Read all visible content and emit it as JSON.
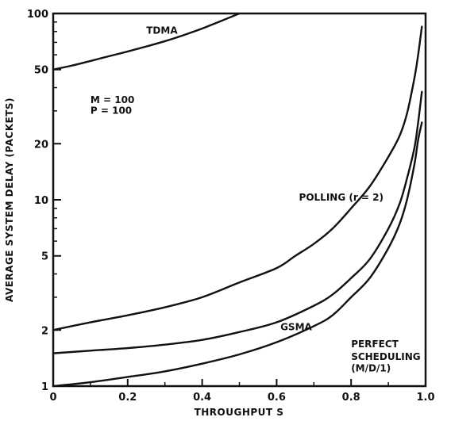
{
  "chart_data": {
    "type": "line",
    "xlabel": "THROUGHPUT S",
    "ylabel": "AVERAGE SYSTEM DELAY (PACKETS)",
    "xlim": [
      0,
      1.0
    ],
    "ylim": [
      1,
      100
    ],
    "yscale": "log",
    "grid": false,
    "x_ticks": [
      0,
      0.2,
      0.4,
      0.6,
      0.8,
      1.0
    ],
    "x_tick_labels": [
      "0",
      "0.2",
      "0.4",
      "0.6",
      "0.8",
      "1.0"
    ],
    "y_major_ticks": [
      1,
      2,
      5,
      10,
      20,
      50,
      100
    ],
    "y_tick_labels": [
      "1",
      "2",
      "5",
      "10",
      "20",
      "50",
      "100"
    ],
    "series": [
      {
        "name": "TDMA",
        "x": [
          0,
          0.05,
          0.1,
          0.15,
          0.2,
          0.25,
          0.3,
          0.35,
          0.4,
          0.45,
          0.5
        ],
        "y": [
          50,
          52.5,
          55.6,
          59,
          62.5,
          66.5,
          71,
          76.5,
          83,
          91,
          100
        ]
      },
      {
        "name": "POLLING (r = 2)",
        "x": [
          0,
          0.1,
          0.2,
          0.3,
          0.4,
          0.5,
          0.6,
          0.65,
          0.7,
          0.75,
          0.8,
          0.85,
          0.9,
          0.93,
          0.95,
          0.97,
          0.98,
          0.99
        ],
        "y": [
          2.0,
          2.2,
          2.4,
          2.65,
          3.0,
          3.6,
          4.3,
          5.0,
          5.8,
          7.0,
          9.0,
          11.8,
          17,
          22,
          29,
          45,
          60,
          85
        ]
      },
      {
        "name": "GSMA",
        "x": [
          0,
          0.1,
          0.2,
          0.3,
          0.4,
          0.5,
          0.6,
          0.7,
          0.75,
          0.8,
          0.85,
          0.9,
          0.93,
          0.95,
          0.97,
          0.98,
          0.99
        ],
        "y": [
          1.5,
          1.55,
          1.6,
          1.67,
          1.77,
          1.95,
          2.2,
          2.7,
          3.1,
          3.8,
          4.8,
          7.0,
          9.5,
          13,
          19,
          26,
          38
        ]
      },
      {
        "name": "PERFECT SCHEDULING (M/D/1)",
        "x": [
          0,
          0.1,
          0.2,
          0.3,
          0.4,
          0.5,
          0.6,
          0.7,
          0.75,
          0.8,
          0.85,
          0.9,
          0.93,
          0.95,
          0.97,
          0.98,
          0.99
        ],
        "y": [
          1.0,
          1.05,
          1.12,
          1.2,
          1.32,
          1.48,
          1.72,
          2.1,
          2.4,
          3.0,
          3.8,
          5.5,
          7.4,
          10,
          15.5,
          21,
          26
        ]
      }
    ],
    "annotations": [
      {
        "text": "TDMA",
        "x": 0.25,
        "y": 78
      },
      {
        "text": "M = 100",
        "x": 0.1,
        "y": 33
      },
      {
        "text": "P = 100",
        "x": 0.1,
        "y": 29
      },
      {
        "text": "POLLING (r = 2)",
        "x": 0.66,
        "y": 9.9
      },
      {
        "text": "GSMA",
        "x": 0.61,
        "y": 2.0
      },
      {
        "text": "PERFECT",
        "x": 0.8,
        "y": 1.62
      },
      {
        "text": "SCHEDULING",
        "x": 0.8,
        "y": 1.38
      },
      {
        "text": "(M/D/1)",
        "x": 0.8,
        "y": 1.2
      }
    ]
  }
}
